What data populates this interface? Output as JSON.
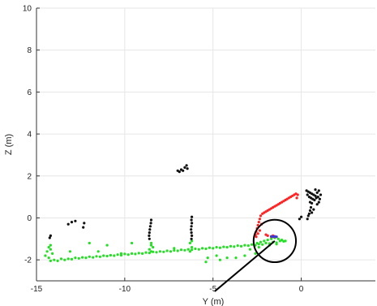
{
  "chart_data": {
    "type": "scatter",
    "xlabel": "Y (m)",
    "ylabel": "Z (m)",
    "xlim": [
      -15,
      4.2
    ],
    "ylim": [
      -3,
      10
    ],
    "xticks": [
      "-15",
      "-10",
      "-5",
      "0"
    ],
    "yticks": [
      "-2",
      "0",
      "2",
      "4",
      "6",
      "8",
      "10"
    ],
    "grid": true,
    "colors": {
      "ground": "#22e022",
      "ego": "#ff2222",
      "obstacle": "#111111",
      "marker": "#3a3ad0",
      "callout": "#000000"
    },
    "series": [
      {
        "color_key": "ground",
        "points": [
          [
            -14.2,
            -2.05
          ],
          [
            -14.0,
            -2.0
          ],
          [
            -13.8,
            -2.05
          ],
          [
            -13.6,
            -1.95
          ],
          [
            -13.4,
            -2.0
          ],
          [
            -13.2,
            -1.95
          ],
          [
            -13.0,
            -1.97
          ],
          [
            -12.8,
            -1.9
          ],
          [
            -12.6,
            -1.93
          ],
          [
            -12.4,
            -1.88
          ],
          [
            -12.2,
            -1.9
          ],
          [
            -12.0,
            -1.85
          ],
          [
            -11.8,
            -1.88
          ],
          [
            -11.6,
            -1.83
          ],
          [
            -11.4,
            -1.85
          ],
          [
            -11.2,
            -1.8
          ],
          [
            -11.0,
            -1.82
          ],
          [
            -10.8,
            -1.78
          ],
          [
            -10.6,
            -1.8
          ],
          [
            -10.4,
            -1.75
          ],
          [
            -10.2,
            -1.78
          ],
          [
            -10.0,
            -1.72
          ],
          [
            -9.8,
            -1.75
          ],
          [
            -9.6,
            -1.7
          ],
          [
            -9.4,
            -1.72
          ],
          [
            -9.2,
            -1.68
          ],
          [
            -9.0,
            -1.7
          ],
          [
            -8.8,
            -1.65
          ],
          [
            -8.6,
            -1.67
          ],
          [
            -8.4,
            -1.62
          ],
          [
            -8.2,
            -1.64
          ],
          [
            -8.0,
            -1.6
          ],
          [
            -7.8,
            -1.62
          ],
          [
            -7.6,
            -1.57
          ],
          [
            -7.4,
            -1.6
          ],
          [
            -7.2,
            -1.55
          ],
          [
            -7.0,
            -1.57
          ],
          [
            -6.8,
            -1.52
          ],
          [
            -6.6,
            -1.54
          ],
          [
            -6.4,
            -1.5
          ],
          [
            -6.2,
            -1.52
          ],
          [
            -6.0,
            -1.47
          ],
          [
            -5.8,
            -1.5
          ],
          [
            -5.6,
            -1.45
          ],
          [
            -5.4,
            -1.47
          ],
          [
            -5.2,
            -1.42
          ],
          [
            -5.0,
            -1.45
          ],
          [
            -4.8,
            -1.4
          ],
          [
            -4.6,
            -1.42
          ],
          [
            -4.4,
            -1.38
          ],
          [
            -4.2,
            -1.4
          ],
          [
            -4.0,
            -1.35
          ],
          [
            -3.8,
            -1.37
          ],
          [
            -3.6,
            -1.32
          ],
          [
            -3.4,
            -1.35
          ],
          [
            -3.2,
            -1.3
          ],
          [
            -3.0,
            -1.32
          ],
          [
            -2.8,
            -1.27
          ],
          [
            -2.6,
            -1.3
          ],
          [
            -2.4,
            -1.25
          ],
          [
            -2.2,
            -1.27
          ],
          [
            -2.0,
            -1.2
          ],
          [
            -1.8,
            -1.22
          ],
          [
            -1.6,
            -1.15
          ],
          [
            -1.4,
            -1.18
          ],
          [
            -1.2,
            -1.1
          ],
          [
            -1.0,
            -1.12
          ],
          [
            -2.3,
            -1.15
          ],
          [
            -2.1,
            -1.1
          ],
          [
            -1.9,
            -1.05
          ],
          [
            -1.7,
            -1.0
          ],
          [
            -1.5,
            -0.95
          ],
          [
            -1.3,
            -1.0
          ],
          [
            -1.1,
            -1.05
          ],
          [
            -0.9,
            -1.1
          ],
          [
            -2.5,
            -1.2
          ],
          [
            -1.8,
            -1.3
          ],
          [
            -1.4,
            -1.25
          ],
          [
            -14.3,
            -1.9
          ],
          [
            -14.5,
            -1.8
          ],
          [
            -14.1,
            -1.7
          ],
          [
            -14.4,
            -1.6
          ],
          [
            -14.2,
            -1.5
          ],
          [
            -14.3,
            -1.4
          ],
          [
            -14.2,
            -1.3
          ],
          [
            -13.1,
            -1.6
          ],
          [
            -11.5,
            -1.6
          ],
          [
            -10.2,
            -1.7
          ],
          [
            -12.0,
            -1.2
          ],
          [
            -11.0,
            -1.3
          ],
          [
            -8.5,
            -1.6
          ],
          [
            -8.6,
            -1.5
          ],
          [
            -8.4,
            -1.4
          ],
          [
            -8.5,
            -1.3
          ],
          [
            -8.5,
            -1.2
          ],
          [
            -6.3,
            -1.6
          ],
          [
            -6.2,
            -1.4
          ],
          [
            -6.3,
            -1.2
          ],
          [
            -6.2,
            -1.1
          ],
          [
            -5.4,
            -2.1
          ],
          [
            -5.3,
            -1.9
          ],
          [
            -4.8,
            -1.8
          ],
          [
            -4.6,
            -2.0
          ],
          [
            -4.2,
            -1.9
          ],
          [
            -3.7,
            -1.9
          ],
          [
            -3.2,
            -1.8
          ],
          [
            -2.6,
            -1.7
          ],
          [
            -2.9,
            -1.5
          ],
          [
            -2.4,
            -1.4
          ],
          [
            -9.6,
            -1.2
          ],
          [
            -7.2,
            -1.45
          ]
        ]
      },
      {
        "color_key": "ego",
        "points": [
          [
            -2.6,
            -0.8
          ],
          [
            -2.55,
            -0.65
          ],
          [
            -2.5,
            -0.5
          ],
          [
            -2.45,
            -0.35
          ],
          [
            -2.4,
            -0.2
          ],
          [
            -2.35,
            -0.05
          ],
          [
            -2.3,
            0.1
          ],
          [
            -2.2,
            0.2
          ],
          [
            -2.1,
            0.25
          ],
          [
            -2.0,
            0.3
          ],
          [
            -1.9,
            0.35
          ],
          [
            -1.8,
            0.4
          ],
          [
            -1.7,
            0.45
          ],
          [
            -1.6,
            0.5
          ],
          [
            -1.5,
            0.55
          ],
          [
            -1.4,
            0.6
          ],
          [
            -1.3,
            0.65
          ],
          [
            -1.2,
            0.7
          ],
          [
            -1.1,
            0.75
          ],
          [
            -1.0,
            0.8
          ],
          [
            -0.9,
            0.85
          ],
          [
            -0.8,
            0.9
          ],
          [
            -0.7,
            0.95
          ],
          [
            -0.6,
            1.0
          ],
          [
            -0.5,
            1.05
          ],
          [
            -0.4,
            1.1
          ],
          [
            -0.3,
            1.15
          ],
          [
            -0.2,
            1.1
          ],
          [
            -0.25,
            0.95
          ],
          [
            -2.55,
            -0.9
          ],
          [
            -2.45,
            -0.75
          ],
          [
            -2.35,
            -0.6
          ],
          [
            -2.25,
            -0.3
          ],
          [
            -2.0,
            -0.8
          ],
          [
            -1.9,
            -0.85
          ],
          [
            -1.7,
            -0.9
          ],
          [
            -1.6,
            -0.85
          ],
          [
            -1.5,
            -0.9
          ]
        ]
      },
      {
        "color_key": "obstacle",
        "points": [
          [
            -14.2,
            -0.85
          ],
          [
            -14.25,
            -0.95
          ],
          [
            -13.0,
            -0.2
          ],
          [
            -12.8,
            -0.15
          ],
          [
            -13.2,
            -0.3
          ],
          [
            -12.3,
            -0.25
          ],
          [
            -12.35,
            -0.45
          ],
          [
            -8.5,
            -0.1
          ],
          [
            -8.52,
            -0.25
          ],
          [
            -8.55,
            -0.4
          ],
          [
            -8.58,
            -0.55
          ],
          [
            -8.6,
            -0.7
          ],
          [
            -8.62,
            -0.85
          ],
          [
            -8.6,
            -1.0
          ],
          [
            -6.2,
            0.05
          ],
          [
            -6.22,
            -0.1
          ],
          [
            -6.2,
            -0.25
          ],
          [
            -6.22,
            -0.4
          ],
          [
            -6.24,
            -0.55
          ],
          [
            -6.22,
            -0.7
          ],
          [
            -6.2,
            -0.85
          ],
          [
            -6.22,
            -1.0
          ],
          [
            -6.9,
            2.2
          ],
          [
            -6.8,
            2.3
          ],
          [
            -6.7,
            2.25
          ],
          [
            -6.6,
            2.4
          ],
          [
            -6.5,
            2.5
          ],
          [
            -6.45,
            2.35
          ],
          [
            -7.0,
            2.25
          ],
          [
            0.3,
            1.3
          ],
          [
            0.4,
            1.25
          ],
          [
            0.5,
            1.2
          ],
          [
            0.6,
            1.15
          ],
          [
            0.7,
            1.1
          ],
          [
            0.8,
            1.05
          ],
          [
            0.9,
            1.2
          ],
          [
            1.0,
            1.3
          ],
          [
            1.1,
            1.1
          ],
          [
            0.35,
            1.1
          ],
          [
            0.45,
            1.0
          ],
          [
            0.55,
            0.95
          ],
          [
            0.65,
            0.9
          ],
          [
            0.75,
            0.85
          ],
          [
            0.85,
            0.95
          ],
          [
            0.95,
            1.0
          ],
          [
            1.05,
            0.9
          ],
          [
            0.5,
            0.75
          ],
          [
            0.6,
            0.7
          ],
          [
            0.55,
            0.5
          ],
          [
            0.5,
            0.35
          ],
          [
            0.45,
            0.2
          ],
          [
            0.6,
            0.25
          ],
          [
            0.7,
            0.4
          ],
          [
            0.4,
            0.1
          ],
          [
            0.35,
            -0.05
          ],
          [
            0.0,
            0.05
          ],
          [
            -0.1,
            -0.05
          ],
          [
            0.8,
            1.35
          ],
          [
            0.9,
            0.65
          ],
          [
            1.0,
            0.75
          ]
        ]
      },
      {
        "color_key": "marker",
        "points": [
          [
            -1.7,
            -0.88
          ],
          [
            -1.6,
            -0.9
          ],
          [
            -1.5,
            -0.88
          ],
          [
            -1.4,
            -0.9
          ]
        ]
      }
    ],
    "annotations": [
      {
        "type": "circle",
        "x": -1.5,
        "y": -1.1,
        "r": 1.2
      },
      {
        "type": "line",
        "from": [
          -1.5,
          -1.1
        ],
        "to": [
          -4.9,
          -3.5
        ]
      }
    ]
  }
}
